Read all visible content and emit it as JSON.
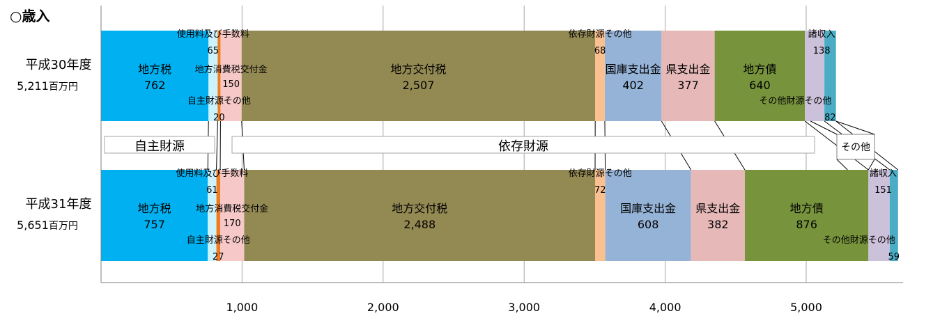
{
  "chart_data": {
    "type": "bar",
    "orientation": "horizontal",
    "stacked": true,
    "title": "○歳入",
    "x_range": [
      0,
      5700
    ],
    "x_ticks": [
      1000,
      2000,
      3000,
      4000,
      5000
    ],
    "x_tick_labels": [
      "1,000",
      "2,000",
      "3,000",
      "4,000",
      "5,000"
    ],
    "grid": true,
    "categories": [
      {
        "year": "平成30年度",
        "total": "5,211",
        "unit": "百万円"
      },
      {
        "year": "平成31年度",
        "total": "5,651",
        "unit": "百万円"
      }
    ],
    "series": [
      {
        "name": "地方税",
        "values": [
          762,
          757
        ],
        "value_labels": [
          "762",
          "757"
        ],
        "color": "#00b0f0"
      },
      {
        "name": "使用料及び手数料",
        "values": [
          65,
          61
        ],
        "value_labels": [
          "65",
          "61"
        ],
        "color": "#ccf2fc"
      },
      {
        "name": "自主財源その他",
        "values": [
          20,
          27
        ],
        "value_labels": [
          "20",
          "27"
        ],
        "color": "#f07c22"
      },
      {
        "name": "地方消費税交付金",
        "values": [
          150,
          170
        ],
        "value_labels": [
          "150",
          "170"
        ],
        "color": "#f6c9c8"
      },
      {
        "name": "地方交付税",
        "values": [
          2507,
          2488
        ],
        "value_labels": [
          "2,507",
          "2,488"
        ],
        "color": "#938953"
      },
      {
        "name": "依存財源その他",
        "values": [
          68,
          72
        ],
        "value_labels": [
          "68",
          "72"
        ],
        "color": "#fac090"
      },
      {
        "name": "国庫支出金",
        "values": [
          402,
          608
        ],
        "value_labels": [
          "402",
          "608"
        ],
        "color": "#95b3d7"
      },
      {
        "name": "県支出金",
        "values": [
          377,
          382
        ],
        "value_labels": [
          "377",
          "382"
        ],
        "color": "#e6b9b8"
      },
      {
        "name": "地方債",
        "values": [
          640,
          876
        ],
        "value_labels": [
          "640",
          "876"
        ],
        "color": "#77933c"
      },
      {
        "name": "諸収入",
        "values": [
          138,
          151
        ],
        "value_labels": [
          "138",
          "151"
        ],
        "color": "#ccc1da"
      },
      {
        "name": "その他財源その他",
        "values": [
          82,
          59
        ],
        "value_labels": [
          "82",
          "59"
        ],
        "color": "#4bacc6"
      }
    ],
    "groups": [
      {
        "label": "自主財源",
        "from_series": 0,
        "to_series": 2
      },
      {
        "label": "依存財源",
        "from_series": 3,
        "to_series": 8
      },
      {
        "label": "その他",
        "from_series": 9,
        "to_series": 10
      }
    ]
  }
}
